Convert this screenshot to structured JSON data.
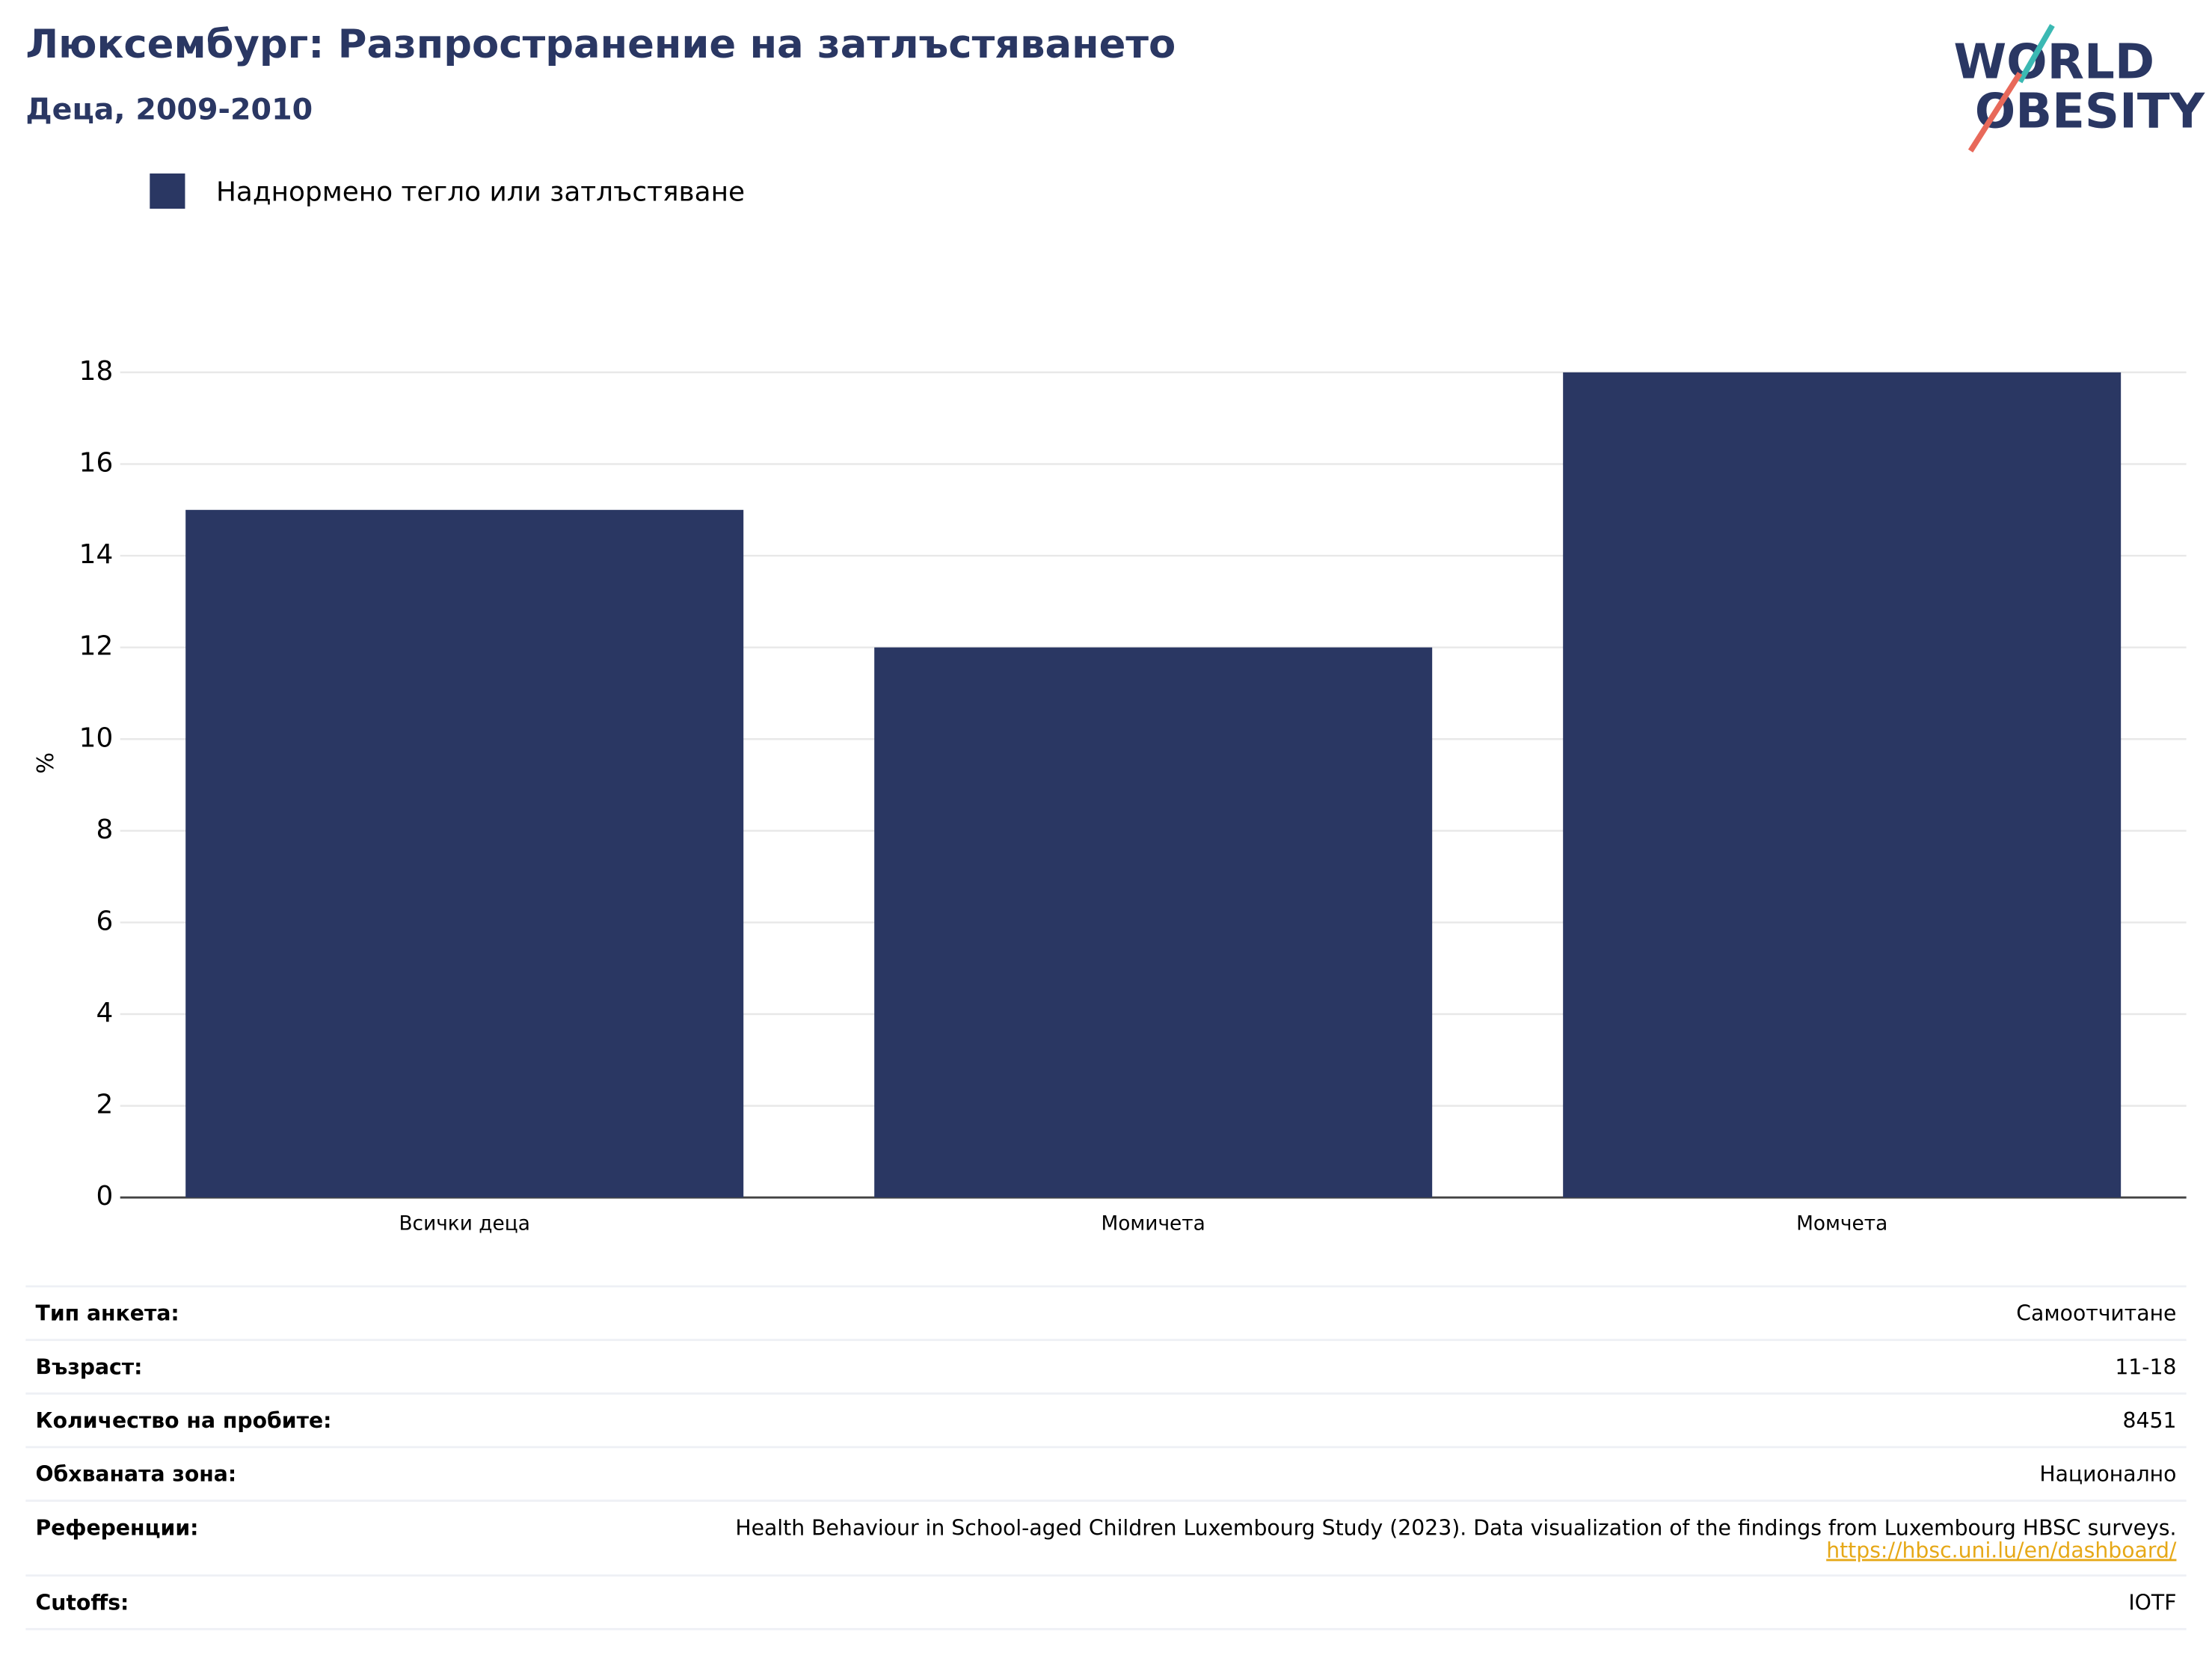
{
  "chart_data": {
    "type": "bar",
    "title": "Люксембург: Разпространение на затлъстяването",
    "subtitle": "Деца, 2009-2010",
    "y_label": "%",
    "categories": [
      "Всички деца",
      "Момичета",
      "Момчета"
    ],
    "series": [
      {
        "name": "Наднормено тегло или затлъстяване",
        "color": "#2a3763",
        "values": [
          15,
          12,
          18
        ]
      }
    ],
    "ylim": [
      0,
      18
    ],
    "yticks": [
      0,
      2,
      4,
      6,
      8,
      10,
      12,
      14,
      16,
      18
    ],
    "grid": true,
    "legend": "top-left"
  },
  "logo": {
    "line1": "WORLD",
    "line2": "OBESITY"
  },
  "info_table": {
    "rows": [
      {
        "label": "Тип анкета:",
        "value": "Самоотчитане"
      },
      {
        "label": "Възраст:",
        "value": "11-18"
      },
      {
        "label": "Количество на пробите:",
        "value": "8451"
      },
      {
        "label": "Обхваната зона:",
        "value": "Национално"
      },
      {
        "label": "Референции:",
        "value": "Health Behaviour in School-aged Children Luxembourg Study (2023). Data visualization of the findings from Luxembourg HBSC surveys.",
        "link": "https://hbsc.uni.lu/en/dashboard/"
      },
      {
        "label": "Cutoffs:",
        "value": "IOTF"
      }
    ]
  }
}
